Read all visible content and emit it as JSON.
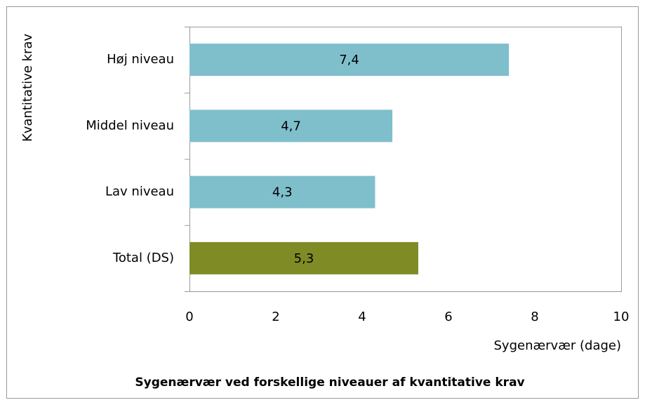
{
  "chart_data": {
    "type": "hbar",
    "title": "Sygenærvær ved forskellige niveauer af kvantitative krav",
    "x_label": "Sygenærvær (dage)",
    "y_label": "Kvantitative krav",
    "categories": [
      "Høj niveau",
      "Middel niveau",
      "Lav niveau",
      "Total (DS)"
    ],
    "values": [
      7.4,
      4.7,
      4.3,
      5.3
    ],
    "value_labels": [
      "7,4",
      "4,7",
      "4,3",
      "5,3"
    ],
    "colors": [
      "#7fbfcc",
      "#7fbfcc",
      "#7fbfcc",
      "#7f8c26"
    ],
    "xlim": [
      0,
      10
    ],
    "xticks": [
      0,
      2,
      4,
      6,
      8,
      10
    ],
    "grid": false
  }
}
